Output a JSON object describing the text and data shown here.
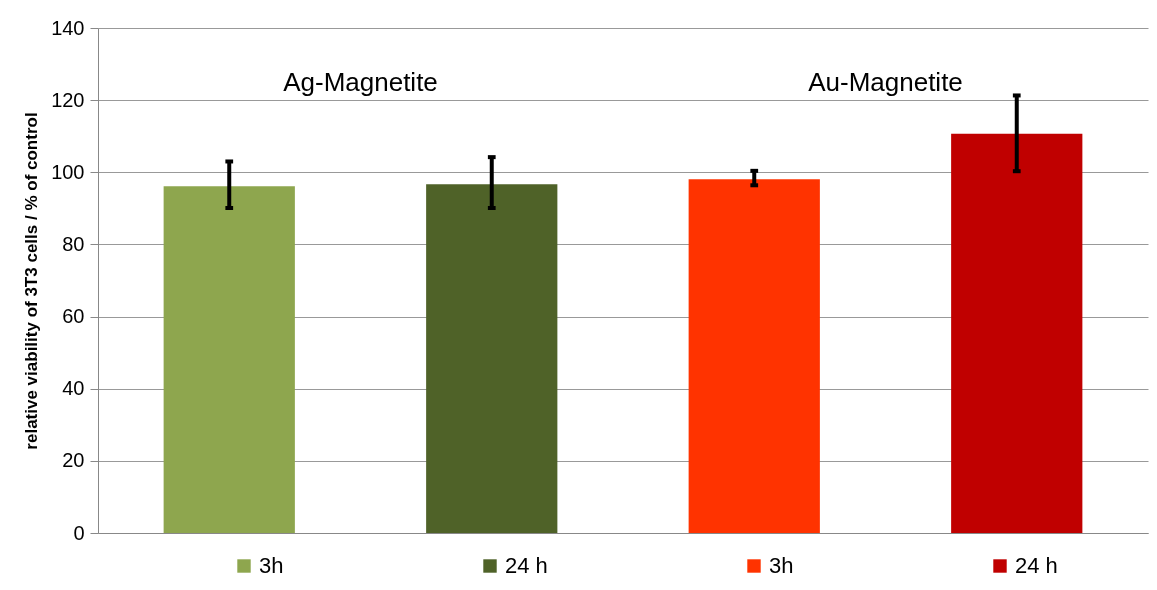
{
  "chart_data": {
    "type": "bar",
    "ylabel": "relative viability of 3T3 cells / % of control",
    "categories": [
      null,
      null,
      null,
      null
    ],
    "series": [
      {
        "name": "3h",
        "color": "#8ea64e",
        "values": [
          96.1,
          null,
          null,
          null
        ],
        "errors": [
          [
            90.1,
            103.0
          ],
          null,
          null,
          null
        ]
      },
      {
        "name": "24 h",
        "color": "#4f6228",
        "values": [
          null,
          96.7,
          null,
          null
        ],
        "errors": [
          null,
          [
            90.1,
            104.2
          ],
          null,
          null
        ]
      },
      {
        "name": "3h",
        "color": "#ff3300",
        "values": [
          null,
          null,
          98.1,
          null
        ],
        "errors": [
          null,
          null,
          [
            96.4,
            100.4
          ],
          null
        ]
      },
      {
        "name": "24 h",
        "color": "#c00000",
        "values": [
          null,
          null,
          null,
          110.7
        ],
        "errors": [
          null,
          null,
          null,
          [
            100.3,
            121.3
          ]
        ]
      }
    ],
    "annotations": [
      "Ag-Magnetite",
      "Au-Magnetite"
    ],
    "ylim": [
      0,
      140
    ],
    "yticks": [
      0,
      20,
      40,
      60,
      80,
      100,
      120,
      140
    ],
    "grid": "y",
    "legend": "bottom"
  }
}
